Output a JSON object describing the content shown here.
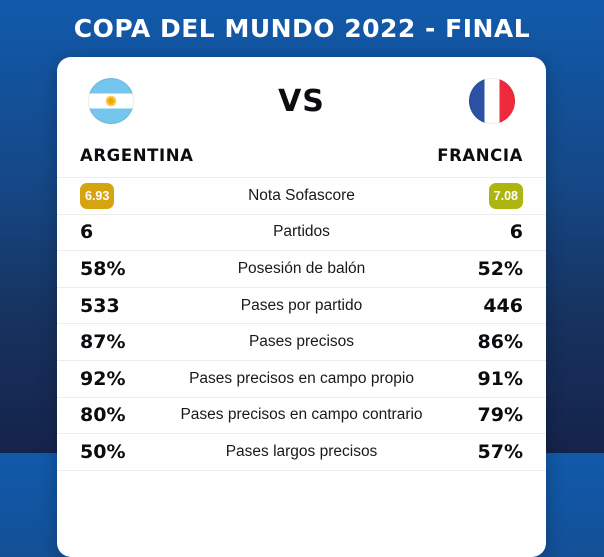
{
  "colors": {
    "background_top": "#115aab",
    "background_bottom": "#15234a",
    "card": "#ffffff",
    "rating_home_badge": "#d6a411",
    "rating_away_badge": "#aeb511",
    "argentina_flag_blue": "#74c6ec",
    "argentina_sun_gold": "#f7bc1a",
    "france_flag_blue": "#2b52a3",
    "france_flag_red": "#ee2a3c",
    "divider": "#ececf0",
    "text": "#0c0d10"
  },
  "header": {
    "title": "COPA DEL MUNDO 2022 - FINAL"
  },
  "match": {
    "vs_label": "VS",
    "home": {
      "name": "ARGENTINA",
      "flag": "argentina-flag"
    },
    "away": {
      "name": "FRANCIA",
      "flag": "france-flag"
    }
  },
  "stats": {
    "rows": [
      {
        "label": "Nota Sofascore",
        "home": "6.93",
        "away": "7.08",
        "style": "rating-badge"
      },
      {
        "label": "Partidos",
        "home": "6",
        "away": "6"
      },
      {
        "label": "Posesión de balón",
        "home": "58%",
        "away": "52%"
      },
      {
        "label": "Pases por partido",
        "home": "533",
        "away": "446"
      },
      {
        "label": "Pases precisos",
        "home": "87%",
        "away": "86%"
      },
      {
        "label": "Pases precisos en campo propio",
        "home": "92%",
        "away": "91%"
      },
      {
        "label": "Pases precisos en campo contrario",
        "home": "80%",
        "away": "79%"
      },
      {
        "label": "Pases largos precisos",
        "home": "50%",
        "away": "57%"
      }
    ]
  },
  "chart_data": {
    "type": "table",
    "title": "COPA DEL MUNDO 2022 - FINAL",
    "categories": [
      "Nota Sofascore",
      "Partidos",
      "Posesión de balón",
      "Pases por partido",
      "Pases precisos",
      "Pases precisos en campo propio",
      "Pases precisos en campo contrario",
      "Pases largos precisos"
    ],
    "series": [
      {
        "name": "ARGENTINA",
        "values": [
          "6.93",
          "6",
          "58%",
          "533",
          "87%",
          "92%",
          "80%",
          "50%"
        ]
      },
      {
        "name": "FRANCIA",
        "values": [
          "7.08",
          "6",
          "52%",
          "446",
          "86%",
          "91%",
          "79%",
          "57%"
        ]
      }
    ],
    "legend_position": "top",
    "grid": false
  }
}
